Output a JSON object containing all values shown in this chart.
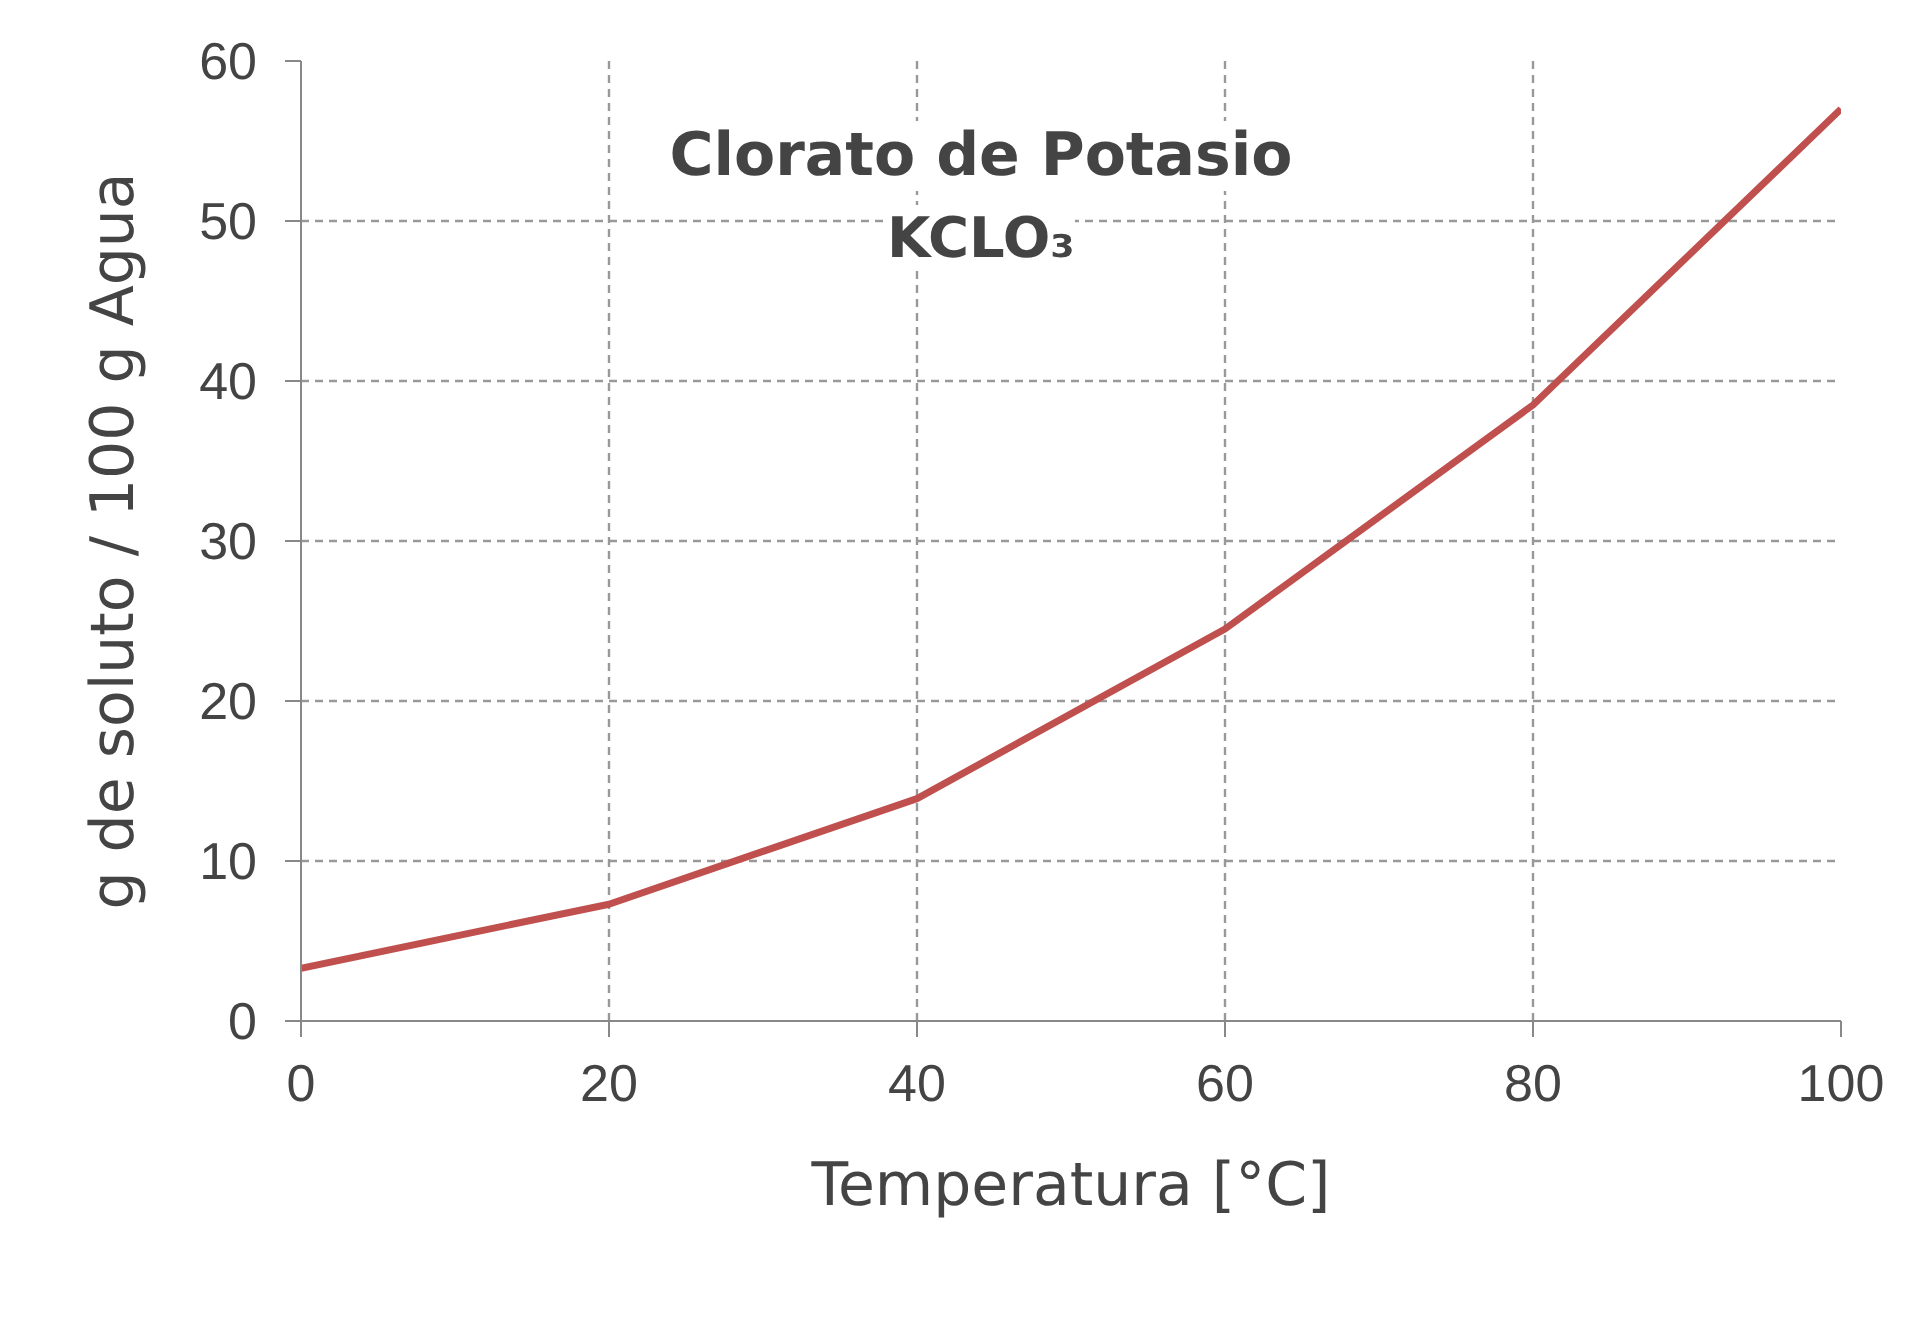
{
  "chart_data": {
    "type": "line",
    "title": "Clorato de Potasio",
    "subtitle": "KCLO₃",
    "xlabel": "Temperatura [°C]",
    "ylabel": "g de soluto / 100 g Agua",
    "x": [
      0,
      20,
      40,
      60,
      80,
      100
    ],
    "series": [
      {
        "color": "#c0504d",
        "values": [
          3.3,
          7.3,
          13.9,
          24.5,
          38.5,
          57
        ]
      }
    ],
    "xlim": [
      0,
      100
    ],
    "ylim": [
      0,
      60
    ],
    "xticks": [
      0,
      20,
      40,
      60,
      80,
      100
    ],
    "yticks": [
      0,
      10,
      20,
      30,
      40,
      50,
      60
    ],
    "grid": true,
    "line_style": "solid"
  }
}
